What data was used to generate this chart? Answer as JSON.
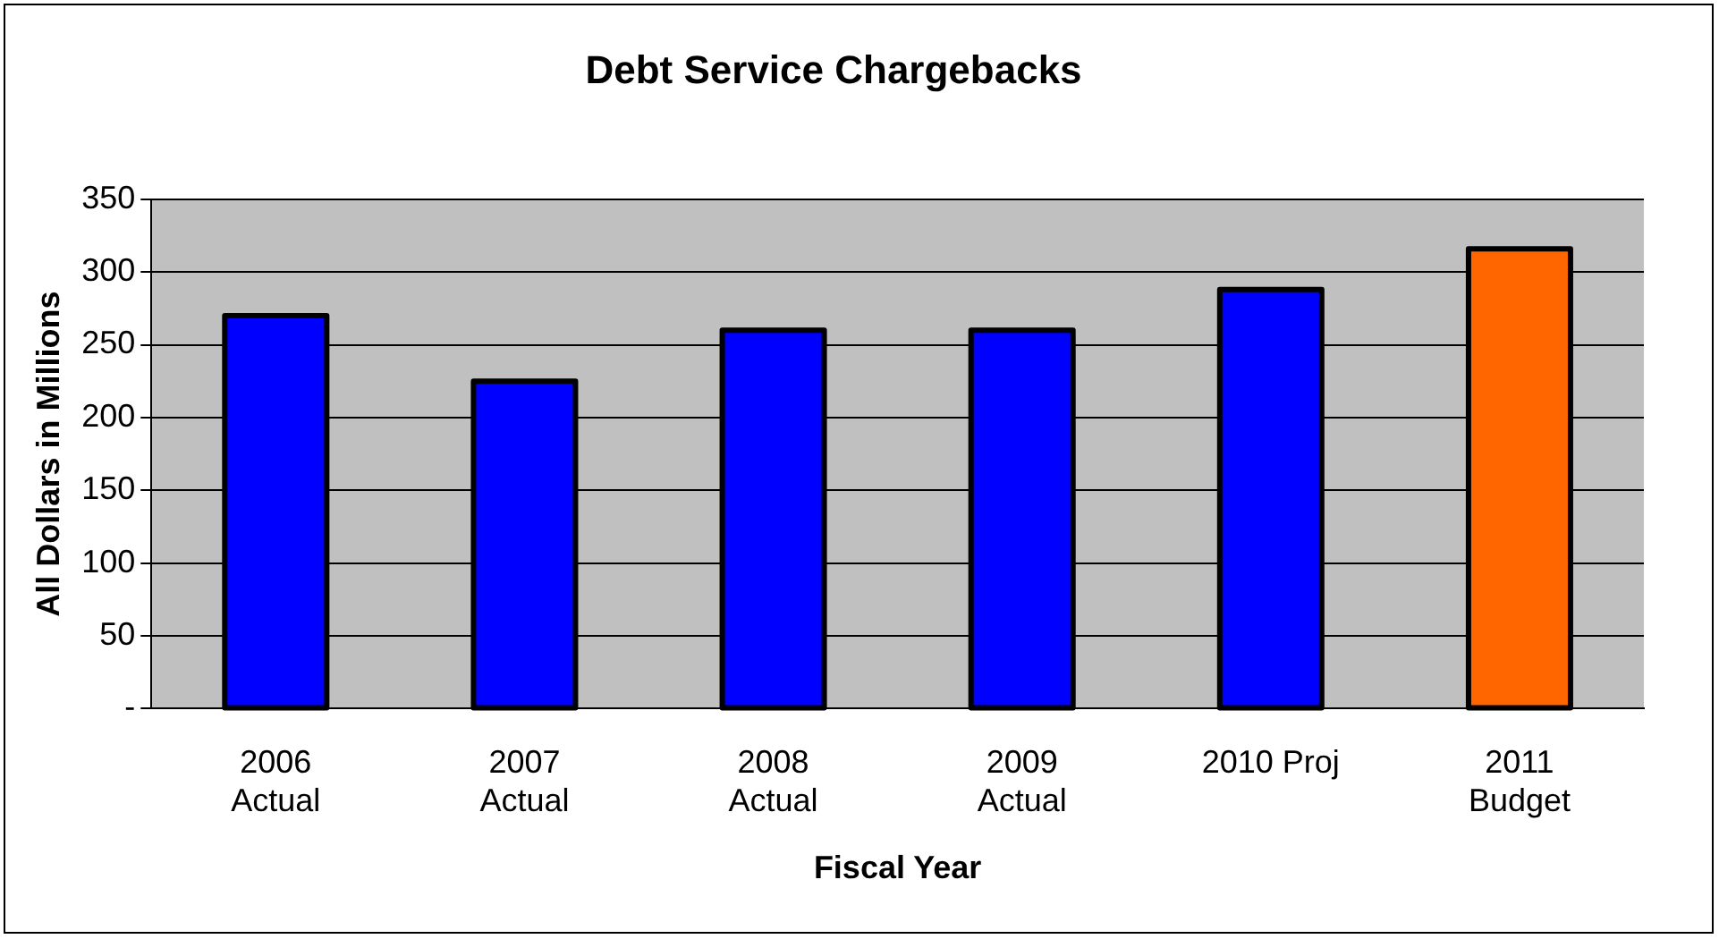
{
  "chart_data": {
    "type": "bar",
    "title": "Debt Service Chargebacks",
    "xlabel": "Fiscal Year",
    "ylabel": "All Dollars in Millions",
    "categories": [
      "2006\nActual",
      "2007\nActual",
      "2008\nActual",
      "2009\nActual",
      "2010 Proj",
      "2011\nBudget"
    ],
    "values": [
      270,
      225,
      260,
      260,
      288,
      316
    ],
    "colors": [
      "#0000ff",
      "#0000ff",
      "#0000ff",
      "#0000ff",
      "#0000ff",
      "#ff6600"
    ],
    "ylim": [
      0,
      350
    ],
    "yticks": [
      {
        "value": 0,
        "label": "-"
      },
      50,
      100,
      150,
      200,
      250,
      300,
      350
    ],
    "grid": "y",
    "legend": false
  }
}
